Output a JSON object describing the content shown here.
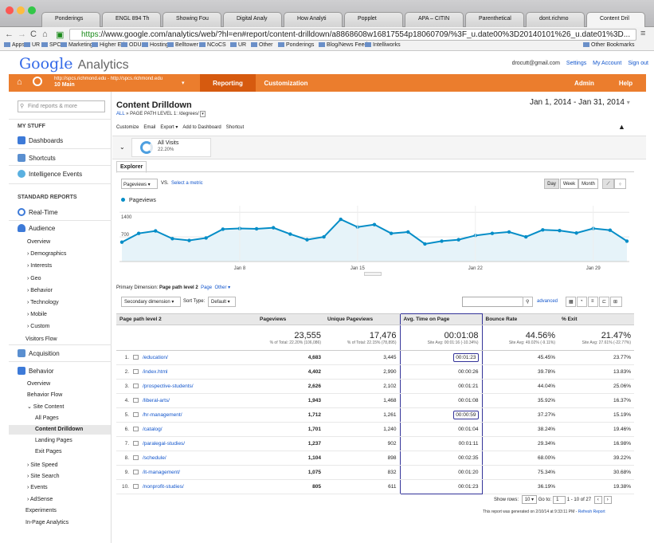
{
  "browser": {
    "tabs": [
      {
        "title": "Ponderings",
        "color": "#222"
      },
      {
        "title": "ENGL 894 Th",
        "color": "#5a9c3a"
      },
      {
        "title": "Showing Fou",
        "color": "#3b7ad8"
      },
      {
        "title": "Digital Analy",
        "color": "#888"
      },
      {
        "title": "How Analyti",
        "color": "#d44"
      },
      {
        "title": "Popplet",
        "color": "#3b7ad8"
      },
      {
        "title": "APA – CITIN",
        "color": "#3b7ad8"
      },
      {
        "title": "Parenthetical",
        "color": "#8a5cc8"
      },
      {
        "title": "dont.richmo",
        "color": "#bbb"
      },
      {
        "title": "Content Dril",
        "color": "#eb7d2d"
      }
    ],
    "url_scheme": "https",
    "url_rest": "://www.google.com/analytics/web/?hl=en#report/content-drilldown/a8868608w16817554p18060709/%3F_u.date00%3D20140101%26_u.date01%3D...",
    "bookmarks": [
      "Apps",
      "UR",
      "SPCS",
      "Marketing",
      "Higher Ed",
      "ODU",
      "Hosting",
      "Belltower",
      "NCoCS",
      "UR",
      "Other",
      "Ponderings",
      "Blog/News Feed",
      "Intelliworks",
      "Other Bookmarks"
    ]
  },
  "header": {
    "logo_google": "Google",
    "logo_analytics": "Analytics",
    "email": "drocutt@gmail.com",
    "settings": "Settings",
    "my_account": "My Account",
    "sign_out": "Sign out"
  },
  "orange_bar": {
    "account_line1": "http://spcs.richmond.edu - http://spcs.richmond.edu",
    "account_line2": "10 Main",
    "reporting": "Reporting",
    "customization": "Customization",
    "admin": "Admin",
    "help": "Help"
  },
  "sidebar": {
    "find_placeholder": "Find reports & more",
    "my_stuff": "MY STUFF",
    "dashboards": "Dashboards",
    "shortcuts": "Shortcuts",
    "intelligence": "Intelligence Events",
    "standard_reports": "STANDARD REPORTS",
    "realtime": "Real-Time",
    "audience": "Audience",
    "audience_items": [
      "Overview",
      "› Demographics",
      "› Interests",
      "› Geo",
      "› Behavior",
      "› Technology",
      "› Mobile",
      "› Custom",
      "Visitors Flow"
    ],
    "acquisition": "Acquisition",
    "behavior": "Behavior",
    "behavior_items": [
      "Overview",
      "Behavior Flow",
      "⌄ Site Content"
    ],
    "site_content_items": [
      "All Pages",
      "Content Drilldown",
      "Landing Pages",
      "Exit Pages"
    ],
    "behavior_more": [
      "› Site Speed",
      "› Site Search",
      "› Events",
      "› AdSense",
      "Experiments",
      "In-Page Analytics"
    ]
  },
  "report": {
    "title": "Content Drilldown",
    "crumb_all": "ALL",
    "crumb_rest": "» PAGE PATH LEVEL 1: /degrees/",
    "date_range": "Jan 1, 2014 - Jan 31, 2014",
    "actions": [
      "Customize",
      "Email",
      "Export ▾",
      "Add to Dashboard",
      "Shortcut"
    ],
    "segment_name": "All Visits",
    "segment_pct": "22.20%",
    "explorer_tab": "Explorer",
    "metric_select": "Pageviews",
    "vs": "VS.",
    "select_metric": "Select a metric",
    "granularity": [
      "Day",
      "Week",
      "Month"
    ],
    "legend": "Pageviews",
    "primary_dim_label": "Primary Dimension:",
    "primary_dim_value": "Page path level 2",
    "primary_dim_links": [
      "Page",
      "Other ▾"
    ],
    "secondary_dim": "Secondary dimension ▾",
    "sort_type_label": "Sort Type:",
    "sort_type_value": "Default ▾",
    "advanced": "advanced",
    "show_rows_label": "Show rows:",
    "show_rows_value": "10",
    "go_to_label": "Go to:",
    "go_to_value": "1",
    "range_text": "1 - 10 of 27",
    "generated": "This report was generated on 2/10/14 at 9:33:11 PM -",
    "refresh": "Refresh Report"
  },
  "chart_data": {
    "type": "line",
    "x": [
      "Jan 1",
      "Jan 2",
      "Jan 3",
      "Jan 4",
      "Jan 5",
      "Jan 6",
      "Jan 7",
      "Jan 8",
      "Jan 9",
      "Jan 10",
      "Jan 11",
      "Jan 12",
      "Jan 13",
      "Jan 14",
      "Jan 15",
      "Jan 16",
      "Jan 17",
      "Jan 18",
      "Jan 19",
      "Jan 20",
      "Jan 21",
      "Jan 22",
      "Jan 23",
      "Jan 24",
      "Jan 25",
      "Jan 26",
      "Jan 27",
      "Jan 28",
      "Jan 29",
      "Jan 30",
      "Jan 31"
    ],
    "x_ticks": [
      "Jan 8",
      "Jan 15",
      "Jan 22",
      "Jan 29"
    ],
    "y_ticks": [
      700,
      1400
    ],
    "ylim": [
      0,
      1450
    ],
    "series": [
      {
        "name": "Pageviews",
        "values": [
          550,
          800,
          870,
          650,
          600,
          670,
          920,
          940,
          930,
          960,
          780,
          620,
          700,
          1200,
          980,
          1050,
          800,
          840,
          500,
          580,
          620,
          740,
          800,
          840,
          700,
          900,
          880,
          810,
          940,
          890,
          580
        ]
      }
    ],
    "color": "#058dc7"
  },
  "table": {
    "headers": [
      "Page path level 2",
      "Pageviews",
      "Unique Pageviews",
      "Avg. Time on Page",
      "Bounce Rate",
      "% Exit"
    ],
    "totals": [
      {
        "big": "23,555",
        "small": "% of Total: 22.20% (106,086)"
      },
      {
        "big": "17,476",
        "small": "% of Total: 22.15% (78,895)"
      },
      {
        "big": "00:01:08",
        "small": "Site Avg: 00:01:16 (-10.34%)"
      },
      {
        "big": "44.56%",
        "small": "Site Avg: 49.02% (-9.11%)"
      },
      {
        "big": "21.47%",
        "small": "Site Avg: 27.61% (-22.77%)"
      }
    ],
    "rows": [
      {
        "i": "1.",
        "page": "/education/",
        "pv": "4,683",
        "upv": "3,445",
        "avg": "00:01:23",
        "br": "45.45%",
        "ex": "23.77%",
        "box": true
      },
      {
        "i": "2.",
        "page": "/index.html",
        "pv": "4,402",
        "upv": "2,990",
        "avg": "00:00:26",
        "br": "39.78%",
        "ex": "13.83%",
        "box": false
      },
      {
        "i": "3.",
        "page": "/prospective-students/",
        "pv": "2,626",
        "upv": "2,102",
        "avg": "00:01:21",
        "br": "44.04%",
        "ex": "25.06%",
        "box": false
      },
      {
        "i": "4.",
        "page": "/liberal-arts/",
        "pv": "1,943",
        "upv": "1,468",
        "avg": "00:01:08",
        "br": "35.92%",
        "ex": "16.37%",
        "box": false
      },
      {
        "i": "5.",
        "page": "/hr-management/",
        "pv": "1,712",
        "upv": "1,261",
        "avg": "00:00:59",
        "br": "37.27%",
        "ex": "15.19%",
        "box": true
      },
      {
        "i": "6.",
        "page": "/catalog/",
        "pv": "1,701",
        "upv": "1,240",
        "avg": "00:01:04",
        "br": "38.24%",
        "ex": "19.46%",
        "box": false
      },
      {
        "i": "7.",
        "page": "/paralegal-studies/",
        "pv": "1,237",
        "upv": "902",
        "avg": "00:01:11",
        "br": "29.34%",
        "ex": "16.98%",
        "box": false
      },
      {
        "i": "8.",
        "page": "/schedule/",
        "pv": "1,104",
        "upv": "898",
        "avg": "00:02:35",
        "br": "68.00%",
        "ex": "39.22%",
        "box": false
      },
      {
        "i": "9.",
        "page": "/it-management/",
        "pv": "1,075",
        "upv": "832",
        "avg": "00:01:20",
        "br": "75.34%",
        "ex": "30.68%",
        "box": false
      },
      {
        "i": "10.",
        "page": "/nonprofit-studies/",
        "pv": "805",
        "upv": "611",
        "avg": "00:01:23",
        "br": "36.19%",
        "ex": "19.38%",
        "box": false
      }
    ]
  }
}
